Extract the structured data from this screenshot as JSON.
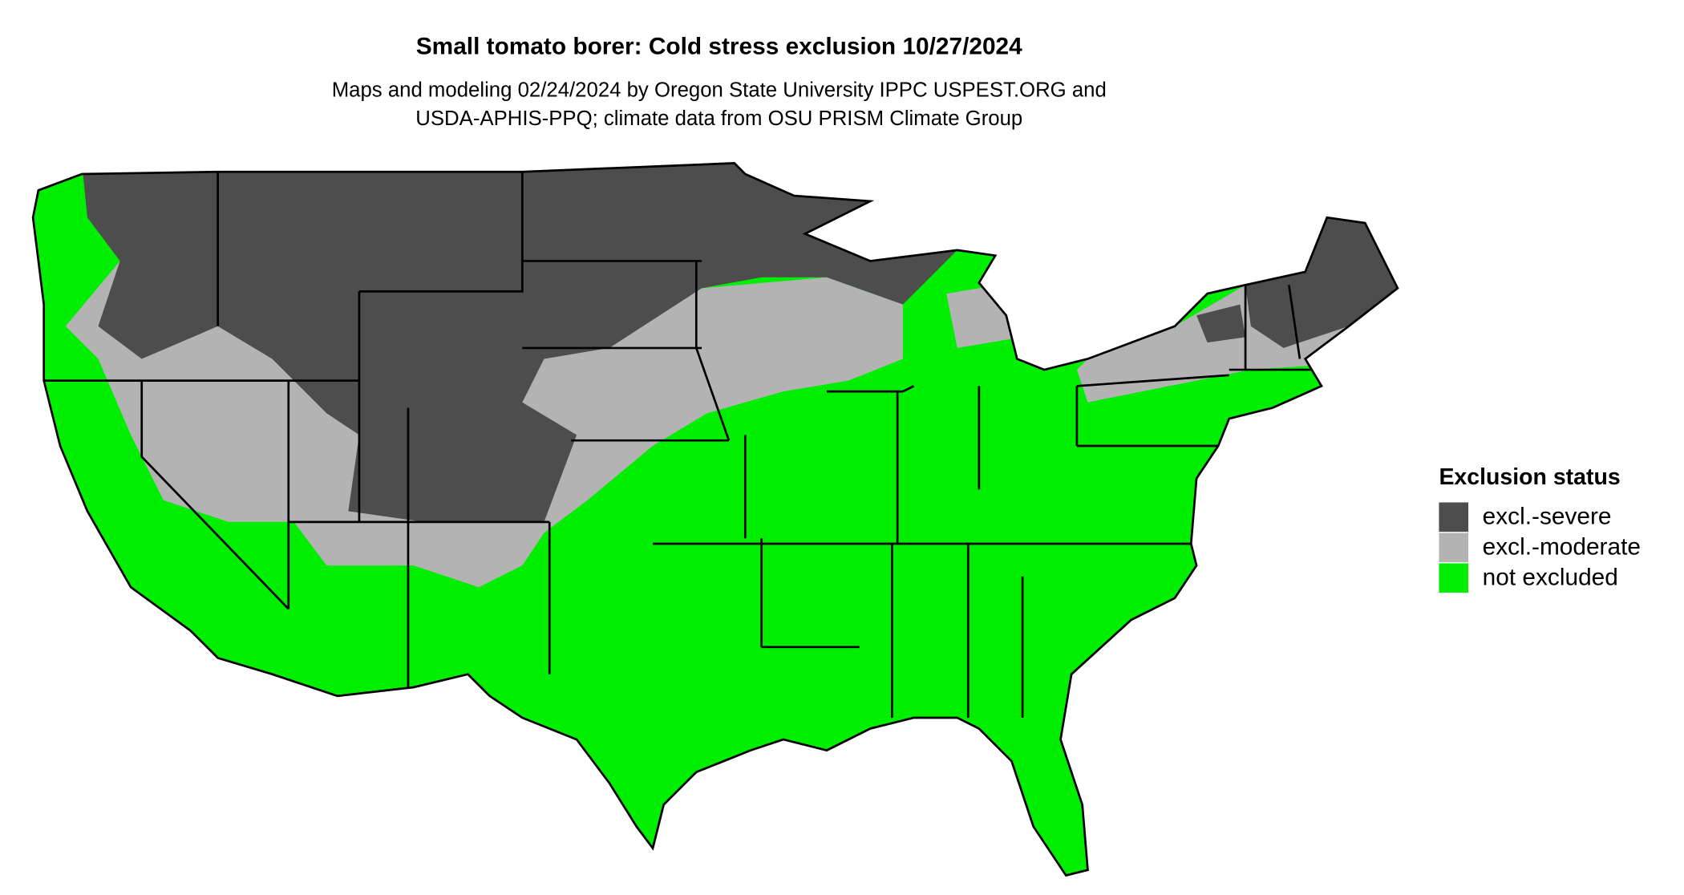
{
  "title": "Small tomato borer: Cold stress exclusion 10/27/2024",
  "subtitle": [
    "Maps and modeling 02/24/2024 by Oregon State University IPPC USPEST.ORG and",
    "USDA-APHIS-PPQ; climate data from OSU PRISM Climate Group"
  ],
  "legend": {
    "title": "Exclusion status",
    "items": [
      {
        "label": "excl.-severe",
        "color": "#4d4d4d"
      },
      {
        "label": "excl.-moderate",
        "color": "#b3b3b3"
      },
      {
        "label": "not excluded",
        "color": "#00ee00"
      }
    ]
  }
}
